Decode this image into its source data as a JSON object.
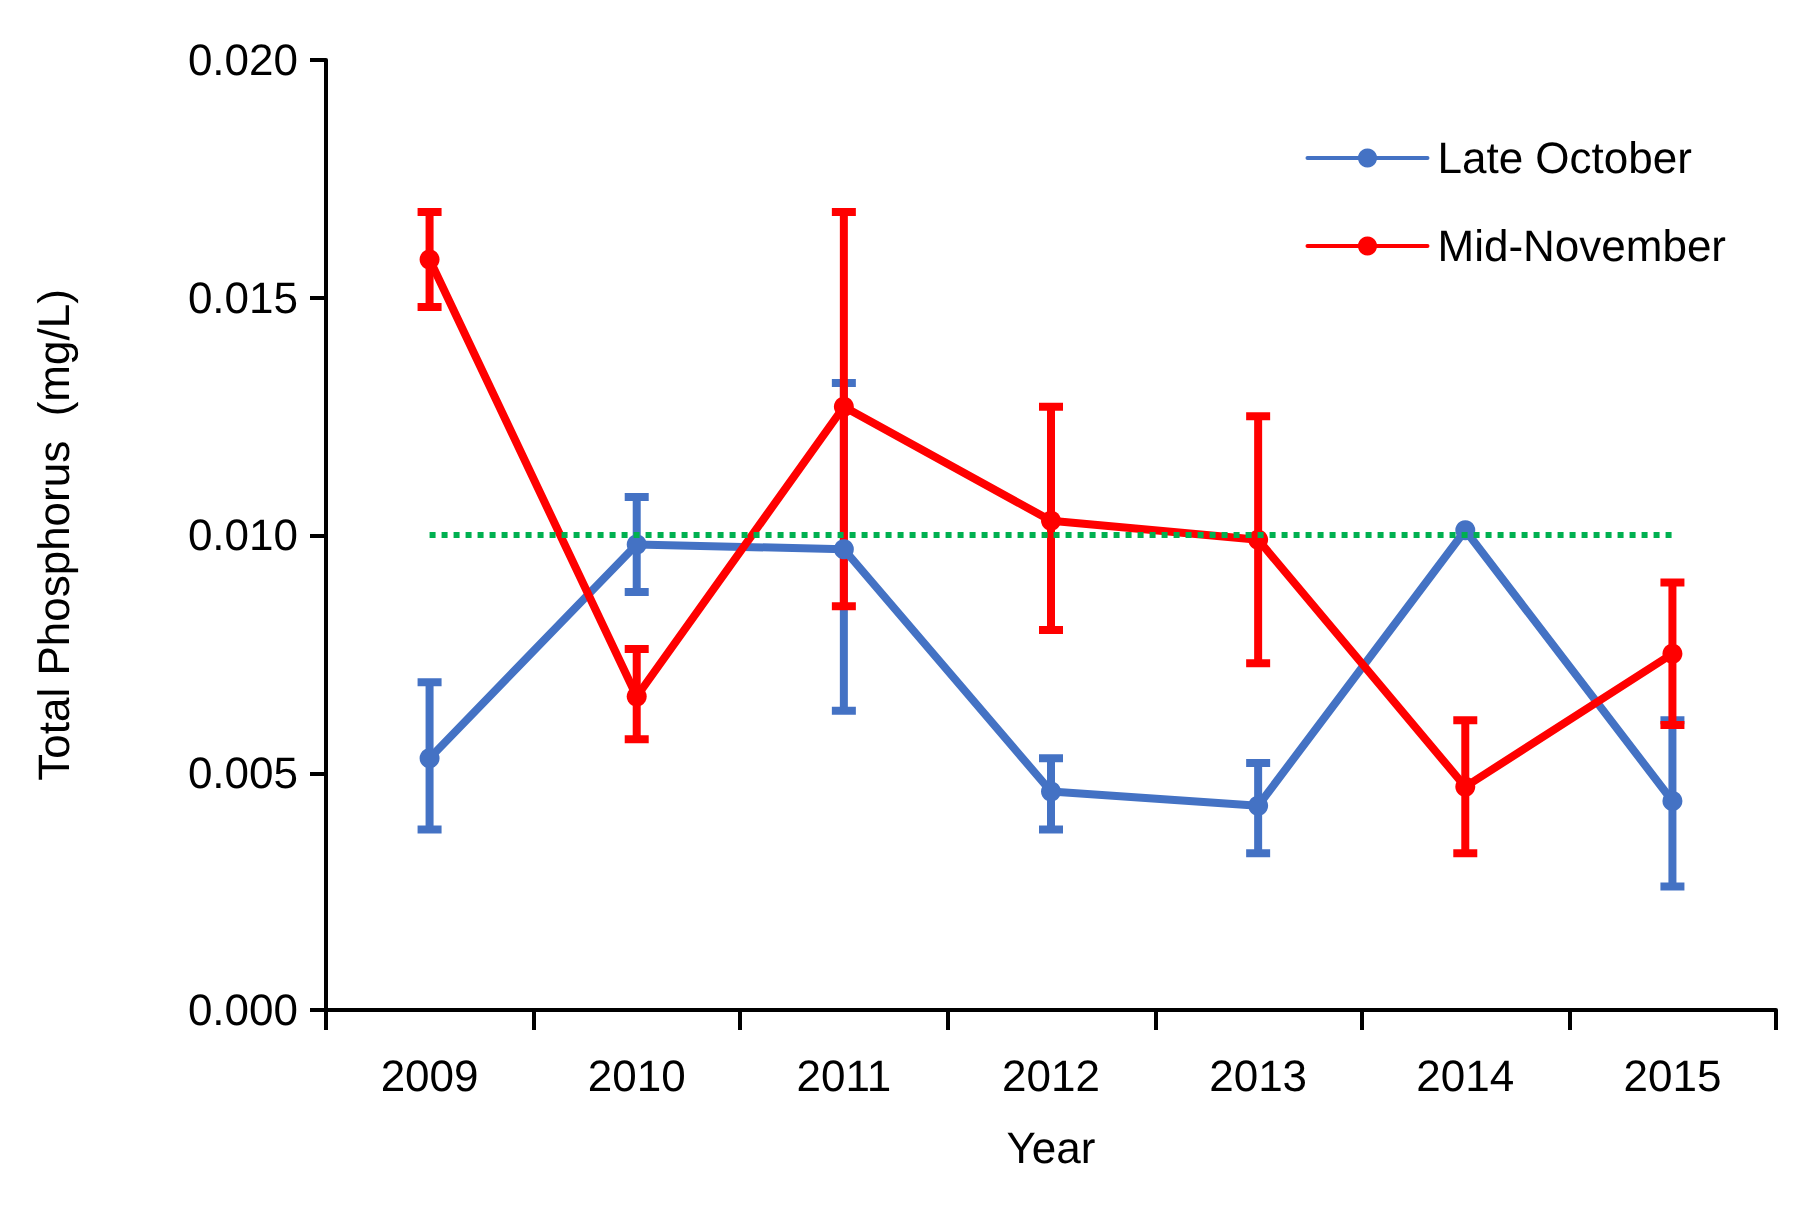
{
  "chart_data": {
    "type": "line",
    "xlabel": "Year",
    "ylabel": "Total Phosphorus  (mg/L)",
    "categories": [
      "2009",
      "2010",
      "2011",
      "2012",
      "2013",
      "2014",
      "2015"
    ],
    "series": [
      {
        "name": "Late October",
        "color": "#4472c4",
        "values": [
          0.0053,
          0.0098,
          0.0097,
          0.0046,
          0.0043,
          0.0101,
          0.0044
        ],
        "errors": [
          [
            0.0038,
            0.0069
          ],
          [
            0.0088,
            0.0108
          ],
          [
            0.0063,
            0.0132
          ],
          [
            0.0038,
            0.0053
          ],
          [
            0.0033,
            0.0052
          ],
          null,
          [
            0.0026,
            0.0061
          ]
        ]
      },
      {
        "name": "Mid-November",
        "color": "#ff0000",
        "values": [
          0.0158,
          0.0066,
          0.0127,
          0.0103,
          0.0099,
          0.0047,
          0.0075
        ],
        "errors": [
          [
            0.0148,
            0.0168
          ],
          [
            0.0057,
            0.0076
          ],
          [
            0.0085,
            0.0168
          ],
          [
            0.008,
            0.0127
          ],
          [
            0.0073,
            0.0125
          ],
          [
            0.0033,
            0.0061
          ],
          [
            0.006,
            0.009
          ]
        ]
      }
    ],
    "ylim": [
      0,
      0.02
    ],
    "yticks": [
      {
        "value": 0,
        "label": "0.000"
      },
      {
        "value": 0.005,
        "label": "0.005"
      },
      {
        "value": 0.01,
        "label": "0.010"
      },
      {
        "value": 0.015,
        "label": "0.015"
      },
      {
        "value": 0.02,
        "label": "0.020"
      }
    ],
    "ref_lines": [
      {
        "axis": "y",
        "value": 0.01,
        "color": "#00b050",
        "line_style": "dotted"
      }
    ],
    "legend": "top right",
    "grid": false,
    "marker": "circle",
    "line_style": "solid"
  }
}
